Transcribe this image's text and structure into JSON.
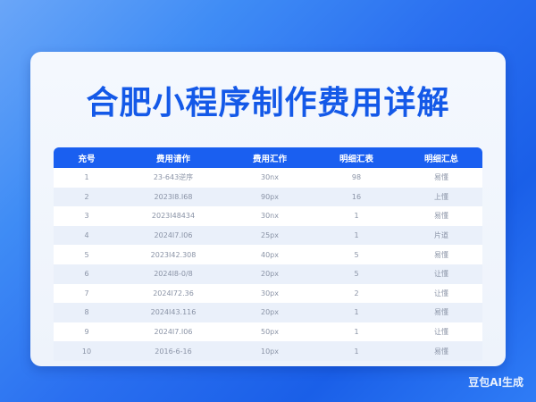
{
  "title": "合肥小程序制作费用详解",
  "table": {
    "headers": [
      "充号",
      "费用请作",
      "费用汇作",
      "明细汇表",
      "明细汇总"
    ],
    "rows": [
      [
        "1",
        "23-643逆序",
        "30nx",
        "98",
        "易懂"
      ],
      [
        "2",
        "2023I8.I68",
        "90px",
        "16",
        "上懂"
      ],
      [
        "3",
        "2023I48434",
        "30nx",
        "1",
        "易懂"
      ],
      [
        "4",
        "2024I7.I06",
        "25px",
        "1",
        "片道"
      ],
      [
        "5",
        "2023I42.308",
        "40px",
        "5",
        "易懂"
      ],
      [
        "6",
        "2024I8-0/8",
        "20px",
        "5",
        "让懂"
      ],
      [
        "7",
        "2024I72.36",
        "30px",
        "2",
        "让懂"
      ],
      [
        "8",
        "2024I43.116",
        "20px",
        "1",
        "易懂"
      ],
      [
        "9",
        "2024I7.I06",
        "50px",
        "1",
        "让懂"
      ],
      [
        "10",
        "2016-6-16",
        "10px",
        "1",
        "易懂"
      ]
    ]
  },
  "watermark": "豆包AI生成"
}
